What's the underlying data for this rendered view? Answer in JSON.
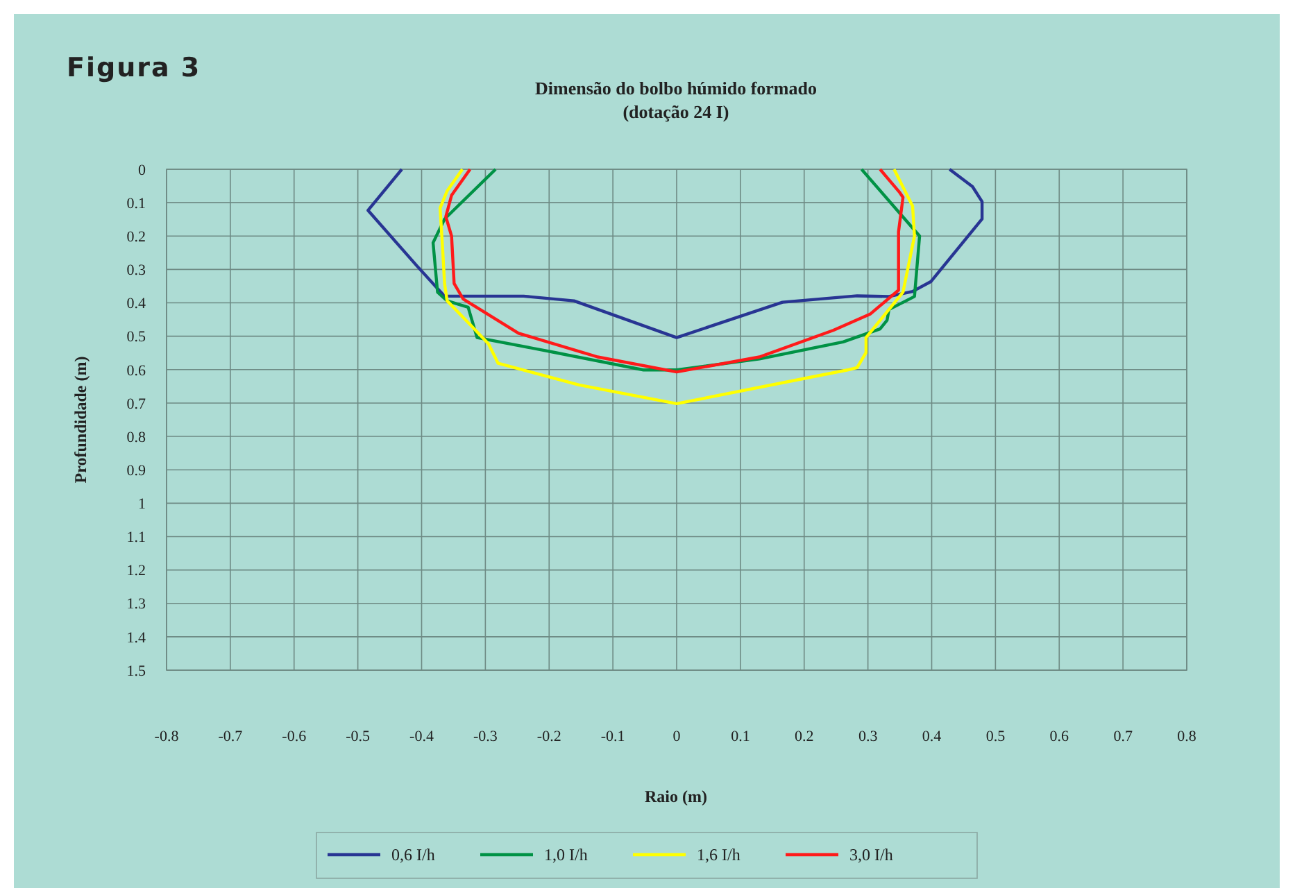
{
  "chart_data": {
    "type": "line",
    "title": "Dimensão do bolbo húmido formado\n(dotação 24 I)",
    "xlabel": "Raio (m)",
    "ylabel": "Profundidade (m)",
    "annotations": [
      "Figura 3"
    ],
    "series": [
      {
        "name": "0,6 I/h",
        "color": "#283593",
        "x": [
          -0.431,
          -0.484,
          -0.407,
          -0.364,
          -0.24,
          -0.161,
          0,
          0.166,
          0.283,
          0.333,
          0.37,
          0.399,
          0.479,
          0.479,
          0.464,
          0.428
        ],
        "values": [
          0,
          0.123,
          0.29,
          0.38,
          0.38,
          0.394,
          0.504,
          0.398,
          0.379,
          0.381,
          0.366,
          0.336,
          0.149,
          0.097,
          0.052,
          0
        ]
      },
      {
        "name": "1,0 I/h",
        "color": "#009245",
        "x": [
          -0.284,
          -0.364,
          -0.382,
          -0.375,
          -0.36,
          -0.327,
          -0.313,
          -0.19,
          -0.052,
          0,
          0.13,
          0.261,
          0.319,
          0.33,
          0.333,
          0.373,
          0.381,
          0.29
        ],
        "values": [
          0,
          0.149,
          0.22,
          0.368,
          0.394,
          0.413,
          0.504,
          0.549,
          0.601,
          0.601,
          0.568,
          0.517,
          0.478,
          0.452,
          0.42,
          0.381,
          0.2,
          0
        ]
      },
      {
        "name": "1,6 I/h",
        "color": "#ffff00",
        "x": [
          -0.336,
          -0.36,
          -0.371,
          -0.367,
          -0.364,
          -0.36,
          -0.324,
          -0.295,
          -0.28,
          -0.153,
          0,
          0.268,
          0.283,
          0.297,
          0.297,
          0.355,
          0.373,
          0.37,
          0.341
        ],
        "values": [
          0,
          0.065,
          0.116,
          0.239,
          0.342,
          0.394,
          0.465,
          0.523,
          0.581,
          0.646,
          0.702,
          0.601,
          0.594,
          0.549,
          0.504,
          0.368,
          0.2,
          0.11,
          0
        ]
      },
      {
        "name": "3,0 I/h",
        "color": "#ff1a1a",
        "x": [
          -0.324,
          -0.353,
          -0.362,
          -0.353,
          -0.349,
          -0.335,
          -0.248,
          -0.124,
          0,
          0.13,
          0.246,
          0.304,
          0.348,
          0.348,
          0.355,
          0.35,
          0.319
        ],
        "values": [
          0,
          0.078,
          0.142,
          0.2,
          0.342,
          0.388,
          0.491,
          0.562,
          0.607,
          0.562,
          0.482,
          0.433,
          0.362,
          0.187,
          0.084,
          0.07,
          0
        ]
      }
    ],
    "xlim": [
      -0.8,
      0.8
    ],
    "xticks": [
      -0.8,
      -0.7,
      -0.6,
      -0.5,
      -0.4,
      -0.3,
      -0.2,
      -0.1,
      0,
      0.1,
      0.2,
      0.3,
      0.4,
      0.5,
      0.6,
      0.7,
      0.8
    ],
    "ylim": [
      1.5,
      0
    ],
    "yticks": [
      0,
      0.1,
      0.2,
      0.3,
      0.4,
      0.5,
      0.6,
      0.7,
      0.8,
      0.9,
      1,
      1.1,
      1.2,
      1.3,
      1.4,
      1.5
    ],
    "grid": true,
    "legend": "bottom",
    "line_style": "solid",
    "marker": "none"
  }
}
